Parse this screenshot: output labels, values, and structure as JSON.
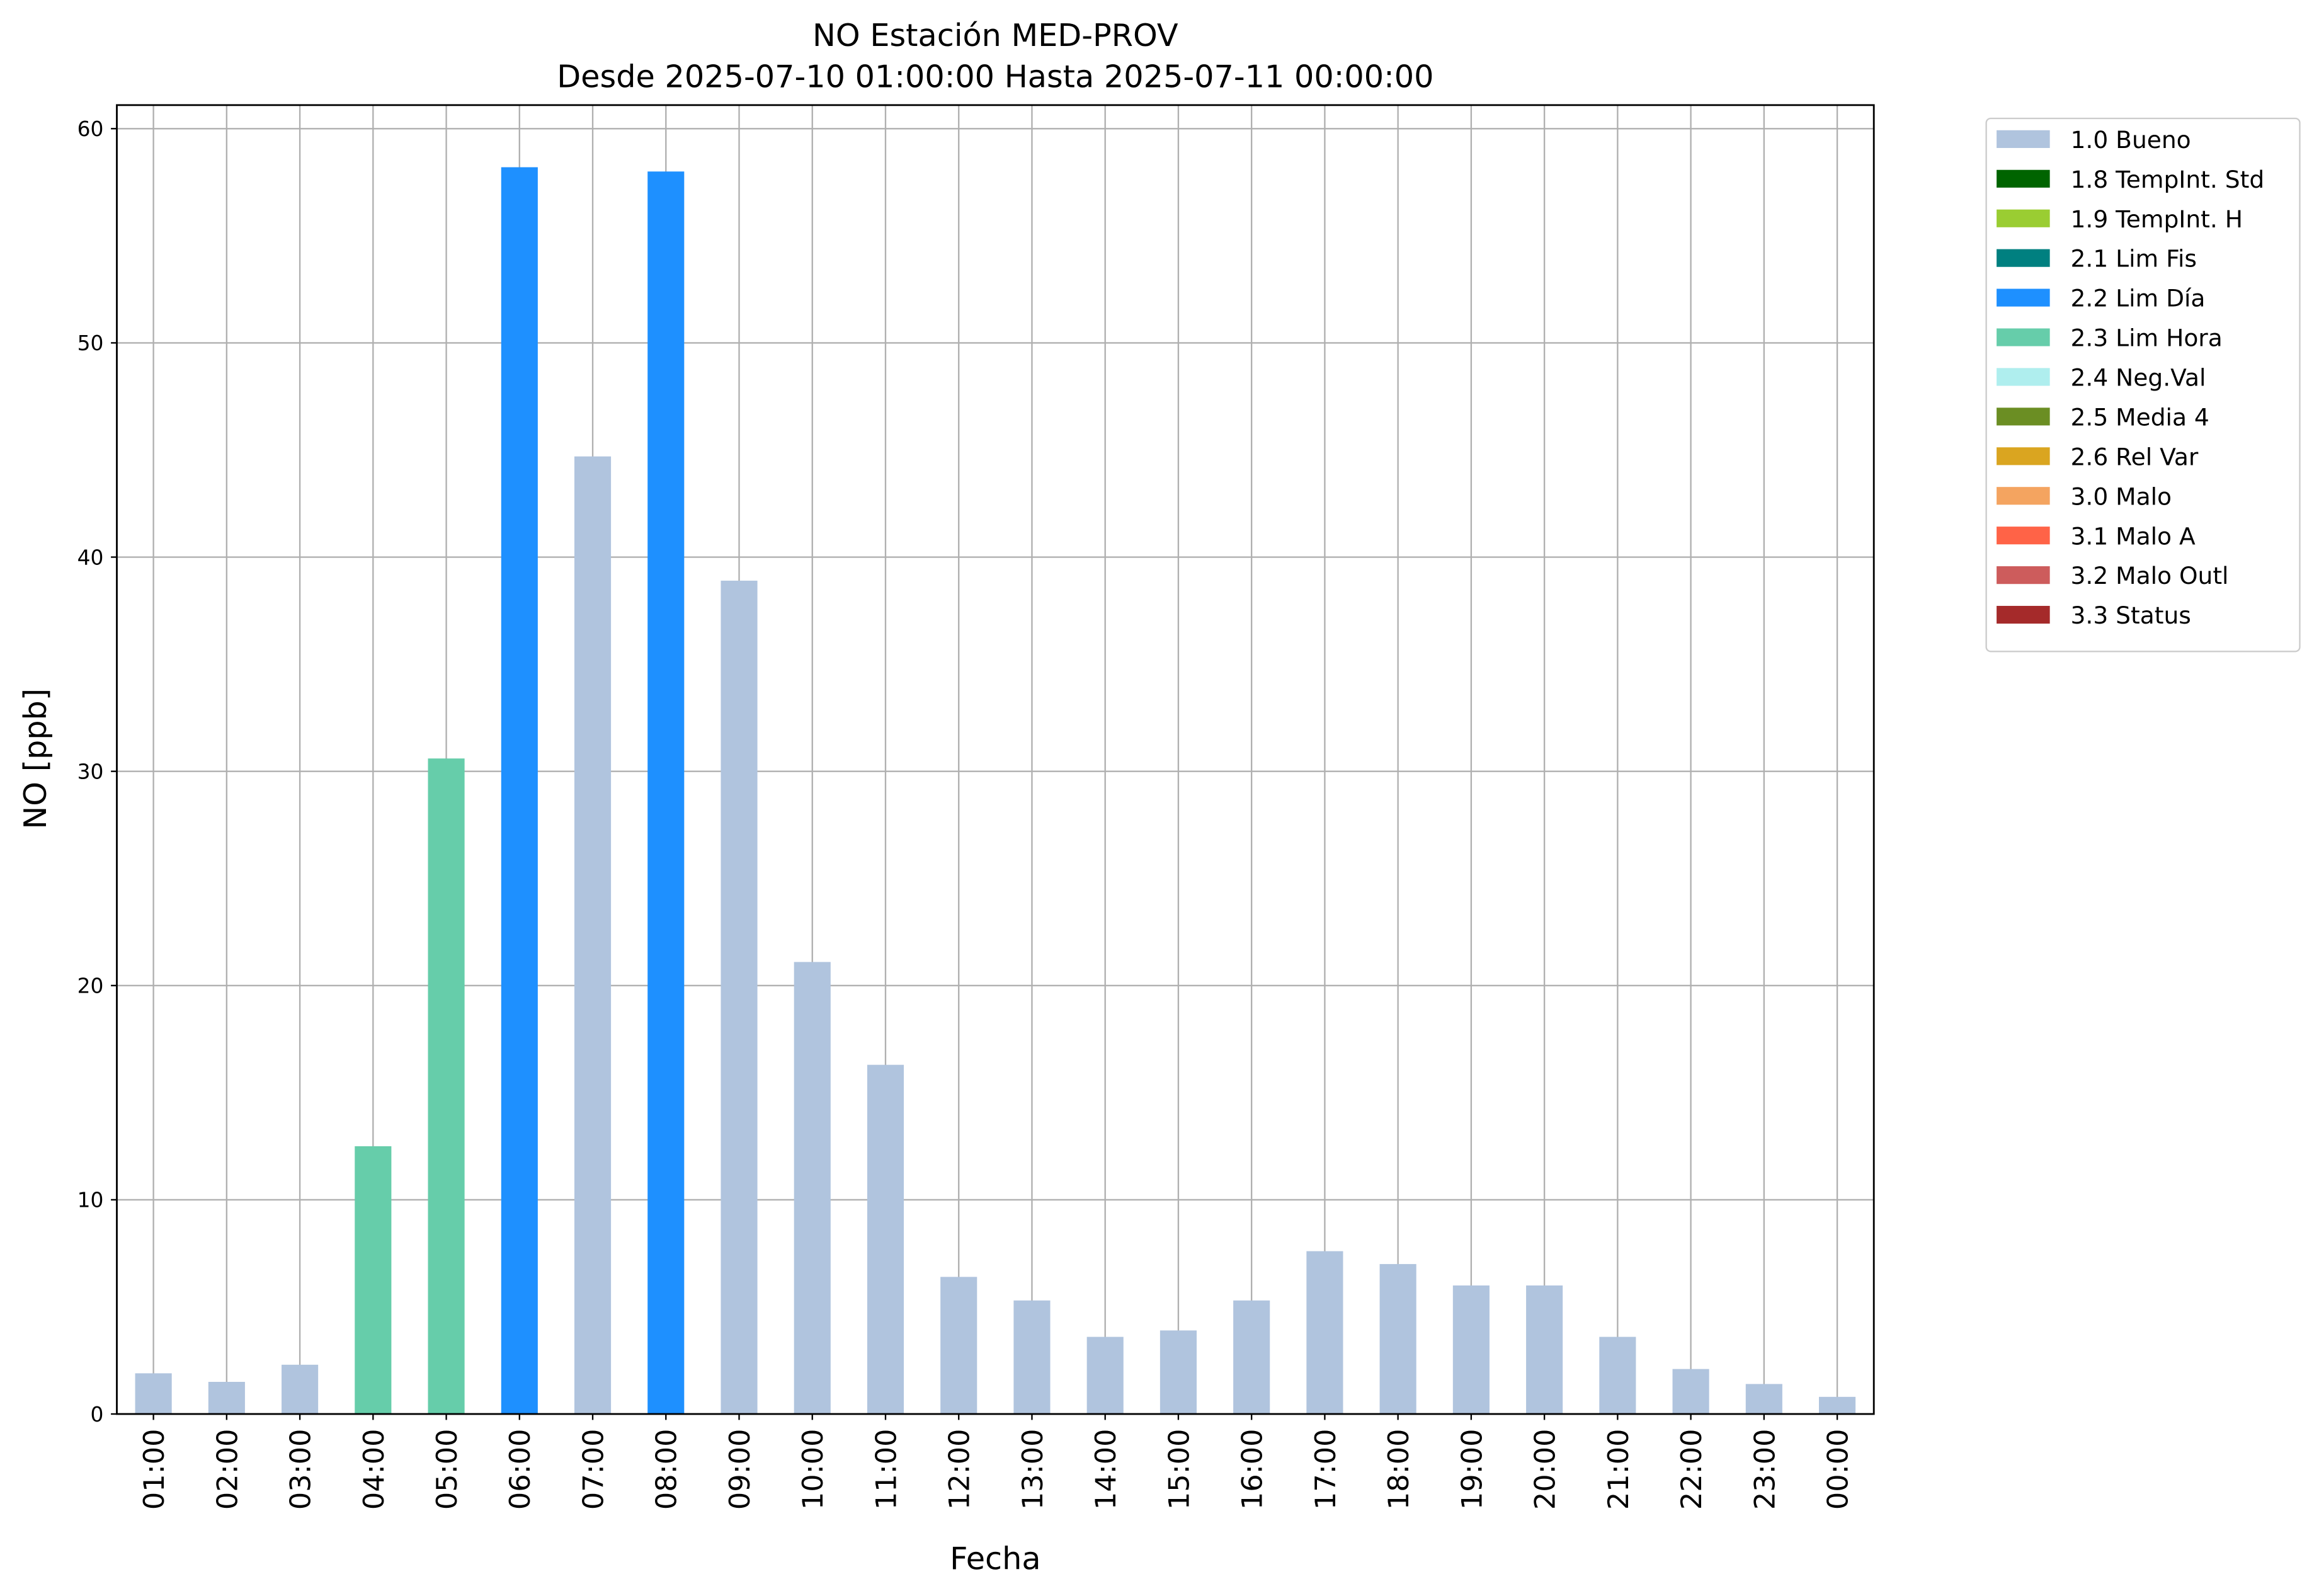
{
  "chart_data": {
    "type": "bar",
    "title": "NO Estación MED-PROV",
    "subtitle": "Desde 2025-07-10 01:00:00 Hasta 2025-07-11 00:00:00",
    "x_label": "Fecha",
    "y_label": "NO [ppb]",
    "categories": [
      "01:00",
      "02:00",
      "03:00",
      "04:00",
      "05:00",
      "06:00",
      "07:00",
      "08:00",
      "09:00",
      "10:00",
      "11:00",
      "12:00",
      "13:00",
      "14:00",
      "15:00",
      "16:00",
      "17:00",
      "18:00",
      "19:00",
      "20:00",
      "21:00",
      "22:00",
      "23:00",
      "00:00"
    ],
    "values": [
      1.9,
      1.5,
      2.3,
      12.5,
      30.6,
      58.2,
      44.7,
      58.0,
      38.9,
      21.1,
      16.3,
      6.4,
      5.3,
      3.6,
      3.9,
      5.3,
      7.6,
      7.0,
      6.0,
      6.0,
      3.6,
      2.1,
      1.4,
      0.8
    ],
    "colors": [
      "#b0c4de",
      "#b0c4de",
      "#b0c4de",
      "#66cdaa",
      "#66cdaa",
      "#1e90ff",
      "#b0c4de",
      "#1e90ff",
      "#b0c4de",
      "#b0c4de",
      "#b0c4de",
      "#b0c4de",
      "#b0c4de",
      "#b0c4de",
      "#b0c4de",
      "#b0c4de",
      "#b0c4de",
      "#b0c4de",
      "#b0c4de",
      "#b0c4de",
      "#b0c4de",
      "#b0c4de",
      "#b0c4de",
      "#b0c4de"
    ],
    "legend": [
      {
        "name": "1.0 Bueno",
        "color": "#b0c4de"
      },
      {
        "name": "1.8 TempInt. Std",
        "color": "#006400"
      },
      {
        "name": "1.9 TempInt. H",
        "color": "#9acd32"
      },
      {
        "name": "2.1 Lim Fis",
        "color": "#008080"
      },
      {
        "name": "2.2 Lim Día",
        "color": "#1e90ff"
      },
      {
        "name": "2.3 Lim Hora",
        "color": "#66cdaa"
      },
      {
        "name": "2.4 Neg.Val",
        "color": "#afeeee"
      },
      {
        "name": "2.5 Media 4",
        "color": "#6b8e23"
      },
      {
        "name": "2.6 Rel Var",
        "color": "#daa520"
      },
      {
        "name": "3.0 Malo",
        "color": "#f4a460"
      },
      {
        "name": "3.1 Malo A",
        "color": "#ff6347"
      },
      {
        "name": "3.2 Malo Outl",
        "color": "#cd5c5c"
      },
      {
        "name": "3.3 Status",
        "color": "#a52a2a"
      }
    ],
    "legend_position": "outside right",
    "ylim": [
      0,
      61.1
    ],
    "yticks": [
      0,
      10,
      20,
      30,
      40,
      50,
      60
    ],
    "grid": true
  }
}
